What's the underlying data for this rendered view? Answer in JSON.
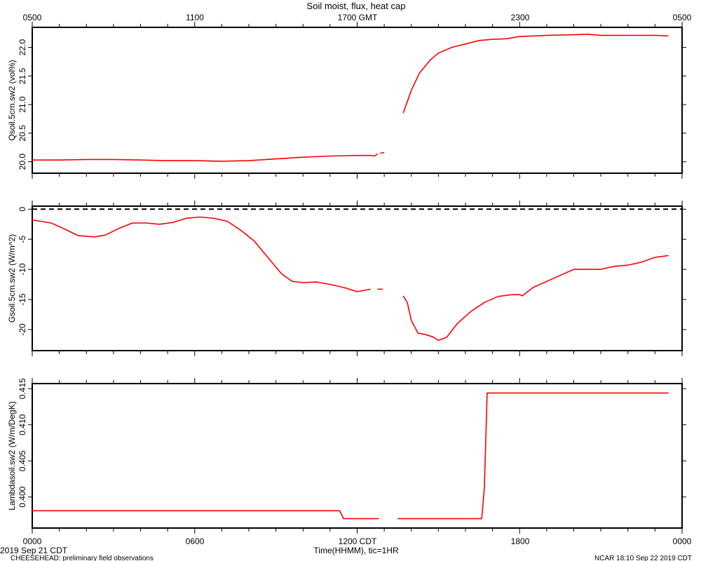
{
  "title": "Soil moist, flux, heat cap",
  "top_axis": {
    "ticks": [
      "0500",
      "1100",
      "1700 GMT",
      "2300",
      "0500"
    ]
  },
  "bottom_axis": {
    "ticks": [
      "0000",
      "0600",
      "1200 CDT",
      "1800",
      "0000"
    ],
    "label": "Time(HHMM), tic=1HR"
  },
  "footer": {
    "date": "2019 Sep 21 CDT",
    "left": "CHEESEHEAD: preliminary field observations",
    "right": "NCAR 18:10 Sep 22 2019 CDT"
  },
  "colors": {
    "line": "#ff0000",
    "axis": "#000000",
    "zero_line": "#000000"
  },
  "chart_data": [
    {
      "type": "line",
      "ylabel": "Qsoil.5cm.sw2 (vol%)",
      "xlim": [
        0,
        24
      ],
      "ylim": [
        19.8,
        22.35
      ],
      "yticks": [
        20.0,
        20.5,
        21.0,
        21.5,
        22.0
      ],
      "ytick_labels": [
        "20.0",
        "20.5",
        "21.0",
        "21.5",
        "22.0"
      ],
      "series": [
        {
          "segments": [
            [
              [
                0.0,
                20.03
              ],
              [
                1.0,
                20.03
              ],
              [
                2.0,
                20.04
              ],
              [
                3.0,
                20.04
              ],
              [
                4.0,
                20.03
              ],
              [
                5.0,
                20.02
              ],
              [
                6.0,
                20.02
              ],
              [
                7.0,
                20.01
              ],
              [
                8.0,
                20.02
              ],
              [
                9.0,
                20.05
              ],
              [
                10.0,
                20.08
              ],
              [
                11.0,
                20.1
              ],
              [
                12.0,
                20.11
              ],
              [
                12.5,
                20.11
              ],
              [
                12.65,
                20.1
              ],
              [
                12.75,
                20.14
              ]
            ],
            [
              [
                12.85,
                20.15
              ],
              [
                13.0,
                20.16
              ]
            ],
            [
              [
                13.7,
                20.85
              ],
              [
                13.8,
                20.98
              ],
              [
                14.0,
                21.25
              ],
              [
                14.3,
                21.55
              ],
              [
                14.7,
                21.78
              ],
              [
                15.0,
                21.9
              ],
              [
                15.5,
                22.0
              ],
              [
                16.0,
                22.06
              ],
              [
                16.5,
                22.12
              ],
              [
                17.0,
                22.14
              ],
              [
                17.5,
                22.15
              ],
              [
                18.0,
                22.19
              ],
              [
                19.0,
                22.21
              ],
              [
                20.0,
                22.22
              ],
              [
                20.5,
                22.23
              ],
              [
                21.0,
                22.21
              ],
              [
                22.0,
                22.21
              ],
              [
                22.5,
                22.21
              ],
              [
                23.0,
                22.21
              ],
              [
                23.5,
                22.2
              ]
            ]
          ]
        }
      ]
    },
    {
      "type": "line",
      "ylabel": "Gsoil.5cm.sw2 (W/m^2)",
      "xlim": [
        0,
        24
      ],
      "ylim": [
        -23.5,
        0.5
      ],
      "yticks": [
        0,
        -5,
        -10,
        -15,
        -20
      ],
      "ytick_labels": [
        "0",
        "-5",
        "-10",
        "-15",
        "-20"
      ],
      "zero_line": 0,
      "series": [
        {
          "segments": [
            [
              [
                0.0,
                -1.8
              ],
              [
                0.3,
                -2.0
              ],
              [
                0.7,
                -2.3
              ],
              [
                1.2,
                -3.3
              ],
              [
                1.7,
                -4.4
              ],
              [
                2.3,
                -4.6
              ],
              [
                2.7,
                -4.3
              ],
              [
                3.2,
                -3.2
              ],
              [
                3.7,
                -2.3
              ],
              [
                4.2,
                -2.3
              ],
              [
                4.7,
                -2.5
              ],
              [
                5.2,
                -2.2
              ],
              [
                5.7,
                -1.5
              ],
              [
                6.2,
                -1.3
              ],
              [
                6.7,
                -1.5
              ],
              [
                7.2,
                -2.0
              ],
              [
                7.7,
                -3.5
              ],
              [
                8.2,
                -5.3
              ],
              [
                8.7,
                -8.0
              ],
              [
                9.2,
                -10.7
              ],
              [
                9.6,
                -12.0
              ],
              [
                10.0,
                -12.2
              ],
              [
                10.5,
                -12.1
              ],
              [
                11.0,
                -12.5
              ],
              [
                11.5,
                -13.0
              ],
              [
                12.0,
                -13.7
              ],
              [
                12.5,
                -13.3
              ]
            ],
            [
              [
                12.75,
                -13.3
              ],
              [
                12.95,
                -13.3
              ]
            ],
            [
              [
                13.7,
                -14.4
              ],
              [
                13.85,
                -15.5
              ],
              [
                14.0,
                -18.5
              ],
              [
                14.25,
                -20.6
              ],
              [
                14.5,
                -20.8
              ],
              [
                14.8,
                -21.2
              ],
              [
                15.0,
                -21.8
              ],
              [
                15.3,
                -21.3
              ],
              [
                15.7,
                -19.0
              ],
              [
                16.2,
                -17.0
              ],
              [
                16.7,
                -15.5
              ],
              [
                17.2,
                -14.5
              ],
              [
                17.7,
                -14.2
              ],
              [
                18.0,
                -14.2
              ],
              [
                18.1,
                -14.4
              ],
              [
                18.5,
                -13.0
              ],
              [
                19.0,
                -12.0
              ],
              [
                19.5,
                -11.0
              ],
              [
                20.0,
                -10.0
              ],
              [
                20.5,
                -10.0
              ],
              [
                21.0,
                -10.0
              ],
              [
                21.5,
                -9.5
              ],
              [
                22.0,
                -9.3
              ],
              [
                22.5,
                -8.8
              ],
              [
                23.0,
                -8.0
              ],
              [
                23.5,
                -7.7
              ]
            ]
          ]
        }
      ]
    },
    {
      "type": "line",
      "ylabel": "Lambdasoil.sw2 (W/m/DegK)",
      "xlim": [
        0,
        24
      ],
      "ylim": [
        0.3957,
        0.4157
      ],
      "yticks": [
        0.4,
        0.405,
        0.41,
        0.415
      ],
      "ytick_labels": [
        "0.400",
        "0.405",
        "0.410",
        "0.415"
      ],
      "series": [
        {
          "segments": [
            [
              [
                0.0,
                0.3981
              ],
              [
                11.35,
                0.3981
              ],
              [
                11.5,
                0.397
              ],
              [
                12.8,
                0.397
              ]
            ],
            [
              [
                13.5,
                0.397
              ],
              [
                16.6,
                0.397
              ],
              [
                16.7,
                0.4013
              ],
              [
                16.8,
                0.4144
              ],
              [
                23.5,
                0.4144
              ]
            ]
          ]
        }
      ]
    }
  ]
}
